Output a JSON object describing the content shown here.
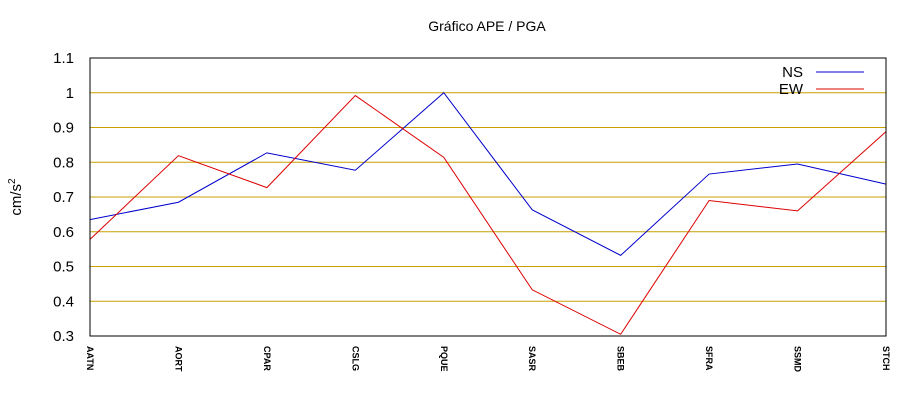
{
  "chart_data": {
    "type": "line",
    "title": "Gráfico  APE / PGA",
    "ylabel": "cm/s",
    "ylabel_superscript": "2",
    "xlabel": "",
    "categories": [
      "AATN",
      "AORT",
      "CPAR",
      "CSLG",
      "PQUE",
      "SASR",
      "SBEB",
      "SFRA",
      "SSMD",
      "STCH"
    ],
    "ylim": [
      0.3,
      1.1
    ],
    "yticks": [
      0.3,
      0.4,
      0.5,
      0.6,
      0.7,
      0.8,
      0.9,
      1,
      1.1
    ],
    "ytick_labels": [
      "0.3",
      "0.4",
      "0.5",
      "0.6",
      "0.7",
      "0.8",
      "0.9",
      "1",
      "1.1"
    ],
    "grid": true,
    "grid_color": "#c8a000",
    "legend_position": "top-right",
    "series": [
      {
        "name": "NS",
        "color": "#0000cc",
        "values": [
          0.635,
          0.685,
          0.827,
          0.777,
          1.0,
          0.663,
          0.532,
          0.766,
          0.795,
          0.737
        ]
      },
      {
        "name": "EW",
        "color": "#dd0000",
        "values": [
          0.578,
          0.819,
          0.727,
          0.992,
          0.814,
          0.433,
          0.305,
          0.69,
          0.66,
          0.888
        ]
      }
    ]
  }
}
